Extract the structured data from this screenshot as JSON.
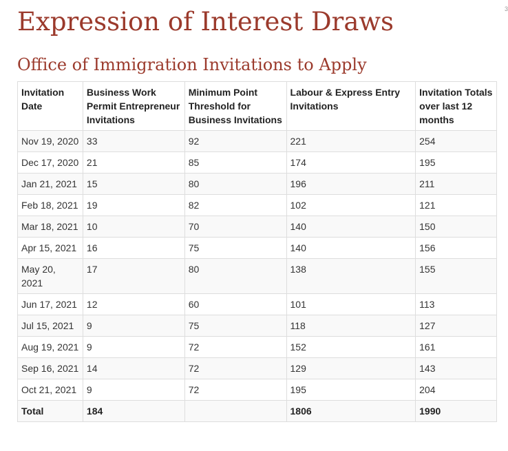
{
  "page": {
    "title": "Expression of Interest Draws",
    "section_title": "Office of Immigration Invitations to Apply",
    "corner_mark": "3"
  },
  "table": {
    "headers": [
      "Invitation Date",
      "Business Work Permit Entrepreneur Invitations",
      "Minimum Point Threshold for Business Invitations",
      "Labour & Express Entry Invitations",
      "Invitation Totals over last 12 months"
    ],
    "rows": [
      [
        "Nov 19, 2020",
        "33",
        "92",
        "221",
        "254"
      ],
      [
        "Dec 17, 2020",
        "21",
        "85",
        "174",
        "195"
      ],
      [
        "Jan 21, 2021",
        "15",
        "80",
        "196",
        "211"
      ],
      [
        "Feb 18, 2021",
        "19",
        "82",
        "102",
        "121"
      ],
      [
        "Mar 18, 2021",
        "10",
        "70",
        "140",
        "150"
      ],
      [
        "Apr 15, 2021",
        "16",
        "75",
        "140",
        "156"
      ],
      [
        "May 20, 2021",
        "17",
        "80",
        "138",
        "155"
      ],
      [
        "Jun 17, 2021",
        "12",
        "60",
        "101",
        "113"
      ],
      [
        "Jul 15, 2021",
        "9",
        "75",
        "118",
        "127"
      ],
      [
        "Aug 19, 2021",
        "9",
        "72",
        "152",
        "161"
      ],
      [
        "Sep 16, 2021",
        "14",
        "72",
        "129",
        "143"
      ],
      [
        "Oct 21, 2021",
        "9",
        "72",
        "195",
        "204"
      ]
    ],
    "total": [
      "Total",
      "184",
      "",
      "1806",
      "1990"
    ]
  },
  "colors": {
    "heading": "#9b3a2c",
    "stripe": "#f9f9f9",
    "border": "#dddddd"
  }
}
